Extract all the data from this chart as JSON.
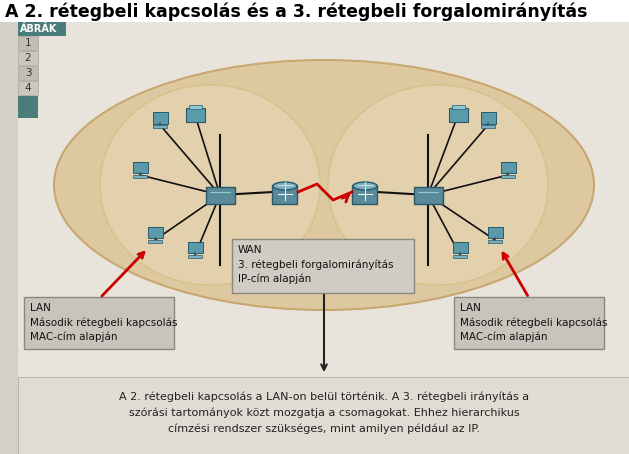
{
  "title": "A 2. rétegbeli kapcsolás és a 3. rétegbeli forgalomirányítás",
  "tab_label": "ÁBRÁK",
  "tab_numbers": [
    "1",
    "2",
    "3",
    "4"
  ],
  "wan_box_text": "WAN\n3. rétegbeli forgalomirányítás\nIP-cím alapján",
  "lan_left_text": "LAN\nMásodik rétegbeli kapcsolás\nMAC-cím alapján",
  "lan_right_text": "LAN\nMásodik rétegbeli kapcsolás\nMAC-cím alapján",
  "bottom_text": "A 2. rétegbeli kapcsolás a LAN-on belül történik. A 3. rétegbeli irányítás a\nszórási tartományok közt mozgatja a csomagokat. Ehhez hierarchikus\ncímzési rendszer szükséges, mint amilyen például az IP.",
  "bg_color": "#d4d0c8",
  "content_bg": "#e8e4dc",
  "title_bg": "#ffffff",
  "title_color": "#000000",
  "tab_bg": "#4a7c7c",
  "tab_text_color": "#ffffff",
  "ellipse_outer_color": "#ddc8a0",
  "ellipse_outer_edge": "#c8a870",
  "ellipse_inner_color": "#e8d8b8",
  "ellipse_inner_edge": "#d4b870",
  "wan_box_bg": "#d0ccc4",
  "wan_box_edge": "#888880",
  "lan_box_bg": "#c8c4bc",
  "lan_box_edge": "#888880",
  "arrow_red": "#cc0000",
  "arrow_black": "#111111",
  "line_color": "#111111",
  "device_teal": "#4a8a8a",
  "device_teal_dark": "#2a5a5a",
  "device_teal_light": "#6aacac"
}
